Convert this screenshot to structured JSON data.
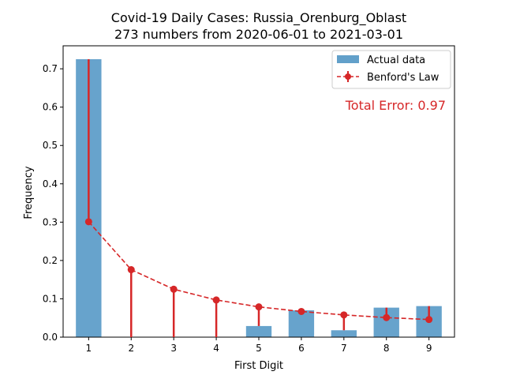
{
  "chart_data": {
    "type": "bar",
    "title": "Covid-19 Daily Cases: Russia_Orenburg_Oblast",
    "subtitle": "273 numbers from 2020-06-01 to 2021-03-01",
    "xlabel": "First Digit",
    "ylabel": "Frequency",
    "categories": [
      "1",
      "2",
      "3",
      "4",
      "5",
      "6",
      "7",
      "8",
      "9"
    ],
    "ylim": [
      0,
      0.76
    ],
    "yticks": [
      "0.0",
      "0.1",
      "0.2",
      "0.3",
      "0.4",
      "0.5",
      "0.6",
      "0.7"
    ],
    "series": [
      {
        "name": "Actual data",
        "kind": "bar",
        "color": "#1f77b4",
        "values": [
          0.725,
          0.0,
          0.0,
          0.0,
          0.029,
          0.07,
          0.018,
          0.077,
          0.081
        ]
      },
      {
        "name": "Benford's Law",
        "kind": "line",
        "color": "#d62728",
        "values": [
          0.301,
          0.176,
          0.125,
          0.097,
          0.079,
          0.067,
          0.058,
          0.051,
          0.046
        ]
      }
    ],
    "annotation": "Total Error: 0.97",
    "legend_position": "top-right",
    "grid": false
  }
}
